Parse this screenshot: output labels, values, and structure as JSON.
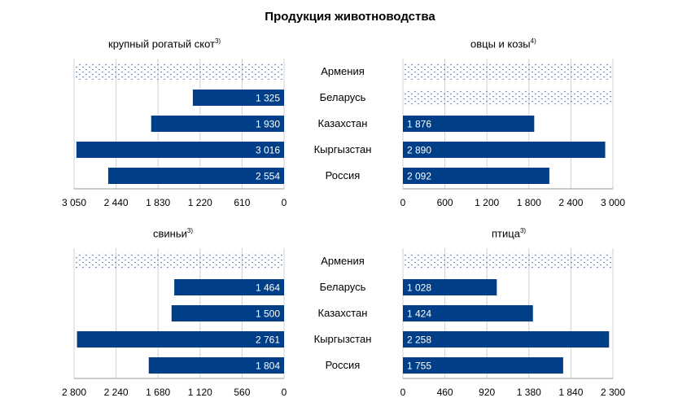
{
  "title": "Продукция животноводства",
  "chart_data": [
    {
      "type": "bar",
      "title": "крупный рогатый скот",
      "title_note": "3)",
      "categories": [
        "Армения",
        "Беларусь",
        "Казахстан",
        "Кыргызстан",
        "Россия"
      ],
      "values": [
        null,
        1325,
        1930,
        3016,
        2554
      ],
      "value_labels": [
        "",
        "1 325",
        "1 930",
        "3 016",
        "2 554"
      ],
      "not_available": [
        true,
        false,
        false,
        false,
        false
      ],
      "xlim": [
        0,
        3050
      ],
      "ticks": [
        3050,
        2440,
        1830,
        1220,
        610,
        0
      ],
      "tick_labels": [
        "3 050",
        "2 440",
        "1 830",
        "1 220",
        "610",
        "0"
      ],
      "reversed": true
    },
    {
      "type": "bar",
      "title": "овцы и козы",
      "title_note": "4)",
      "categories": [
        "Армения",
        "Беларусь",
        "Казахстан",
        "Кыргызстан",
        "Россия"
      ],
      "values": [
        null,
        null,
        1876,
        2890,
        2092
      ],
      "value_labels": [
        "",
        "",
        "1 876",
        "2 890",
        "2 092"
      ],
      "not_available": [
        true,
        true,
        false,
        false,
        false
      ],
      "xlim": [
        0,
        3000
      ],
      "ticks": [
        0,
        600,
        1200,
        1800,
        2400,
        3000
      ],
      "tick_labels": [
        "0",
        "600",
        "1 200",
        "1 800",
        "2 400",
        "3 000"
      ],
      "reversed": false
    },
    {
      "type": "bar",
      "title": "свиньи",
      "title_note": "3)",
      "categories": [
        "Армения",
        "Беларусь",
        "Казахстан",
        "Кыргызстан",
        "Россия"
      ],
      "values": [
        null,
        1464,
        1500,
        2761,
        1804
      ],
      "value_labels": [
        "",
        "1 464",
        "1 500",
        "2 761",
        "1 804"
      ],
      "not_available": [
        true,
        false,
        false,
        false,
        false
      ],
      "xlim": [
        0,
        2800
      ],
      "ticks": [
        2800,
        2240,
        1680,
        1120,
        560,
        0
      ],
      "tick_labels": [
        "2 800",
        "2 240",
        "1 680",
        "1 120",
        "560",
        "0"
      ],
      "reversed": true
    },
    {
      "type": "bar",
      "title": "птица",
      "title_note": "3)",
      "categories": [
        "Армения",
        "Беларусь",
        "Казахстан",
        "Кыргызстан",
        "Россия"
      ],
      "values": [
        null,
        1028,
        1424,
        2258,
        1755
      ],
      "value_labels": [
        "",
        "1 028",
        "1 424",
        "2 258",
        "1 755"
      ],
      "not_available": [
        true,
        false,
        false,
        false,
        false
      ],
      "xlim": [
        0,
        2300
      ],
      "ticks": [
        0,
        460,
        920,
        1380,
        1840,
        2300
      ],
      "tick_labels": [
        "0",
        "460",
        "920",
        "1 380",
        "1 840",
        "2 300"
      ],
      "reversed": false
    }
  ],
  "colors": {
    "bar": "#003f87",
    "grid": "#d0d0d0",
    "axis": "#9a9a9a",
    "dots": "#3a6aa8"
  }
}
